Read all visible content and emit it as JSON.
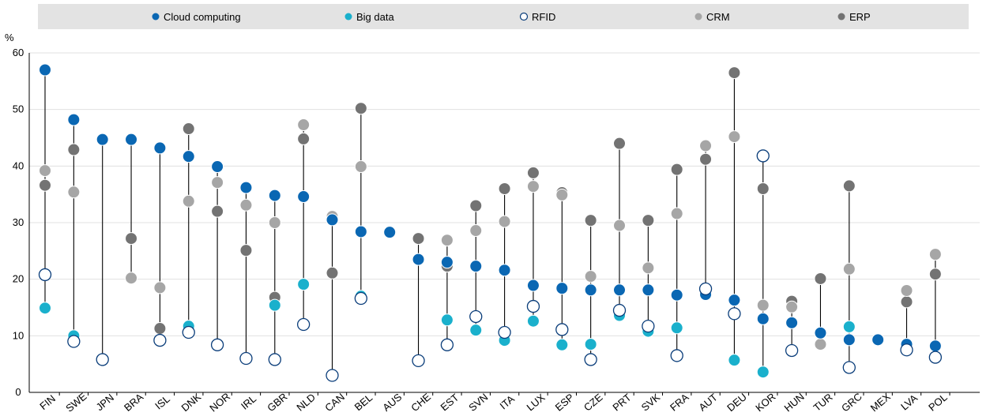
{
  "chart_data": {
    "type": "scatter",
    "ylabel": "%",
    "ylim": [
      0,
      60
    ],
    "yticks": [
      0,
      10,
      20,
      30,
      40,
      50,
      60
    ],
    "grid": "horizontal",
    "legend_position": "top",
    "categories": [
      "FIN",
      "SWE",
      "JPN",
      "BRA",
      "ISL",
      "DNK",
      "NOR",
      "IRL",
      "GBR",
      "NLD",
      "CAN",
      "BEL",
      "AUS",
      "CHE",
      "EST",
      "SVN",
      "ITA",
      "LUX",
      "ESP",
      "CZE",
      "PRT",
      "SVK",
      "FRA",
      "AUT",
      "DEU",
      "KOR",
      "HUN",
      "TUR",
      "GRC",
      "MEX",
      "LVA",
      "POL"
    ],
    "series": [
      {
        "name": "Cloud computing",
        "color": "#0a67b3",
        "marker": "filled",
        "values": [
          57,
          48.2,
          44.7,
          44.7,
          43.2,
          41.7,
          39.9,
          36.2,
          34.8,
          34.6,
          30.5,
          28.4,
          28.3,
          23.5,
          23.0,
          22.3,
          21.6,
          18.9,
          18.4,
          18.1,
          18.1,
          18.1,
          17.2,
          17.3,
          16.3,
          13.0,
          12.3,
          10.5,
          9.3,
          9.3,
          8.5,
          8.2
        ]
      },
      {
        "name": "Big data",
        "color": "#1ab0cc",
        "marker": "filled",
        "values": [
          14.9,
          10.0,
          null,
          null,
          null,
          11.7,
          null,
          null,
          15.4,
          19.1,
          null,
          17.0,
          null,
          null,
          12.8,
          11.0,
          9.2,
          12.6,
          8.4,
          8.5,
          13.6,
          10.8,
          11.4,
          null,
          5.7,
          3.6,
          7.3,
          null,
          11.6,
          null,
          8.0,
          null
        ]
      },
      {
        "name": "RFID",
        "color": "#0a3d7a",
        "marker": "hollow",
        "values": [
          20.8,
          9.0,
          5.8,
          null,
          9.2,
          10.6,
          8.4,
          6.0,
          5.8,
          12.0,
          3.0,
          16.6,
          null,
          5.6,
          8.4,
          13.4,
          10.6,
          15.2,
          11.1,
          5.8,
          14.5,
          11.7,
          6.5,
          18.3,
          13.9,
          41.8,
          7.4,
          null,
          4.4,
          null,
          7.5,
          6.2
        ]
      },
      {
        "name": "CRM",
        "color": "#a6a6a6",
        "marker": "filled",
        "values": [
          39.2,
          35.4,
          null,
          20.2,
          18.5,
          33.8,
          37.1,
          33.1,
          30.0,
          47.3,
          31.1,
          39.9,
          null,
          null,
          26.9,
          28.6,
          30.2,
          36.4,
          34.9,
          20.5,
          29.5,
          22.0,
          31.6,
          43.6,
          45.2,
          15.4,
          15.1,
          8.5,
          21.8,
          null,
          18.0,
          24.4
        ]
      },
      {
        "name": "ERP",
        "color": "#737373",
        "marker": "filled",
        "values": [
          36.6,
          42.9,
          null,
          27.2,
          11.3,
          46.6,
          32.0,
          25.1,
          16.8,
          44.8,
          21.1,
          50.2,
          null,
          27.2,
          22.3,
          33.0,
          36.0,
          38.8,
          35.3,
          30.4,
          44.0,
          30.4,
          39.4,
          41.2,
          56.5,
          36.0,
          16.1,
          20.1,
          36.5,
          null,
          16.0,
          20.9
        ]
      }
    ]
  }
}
